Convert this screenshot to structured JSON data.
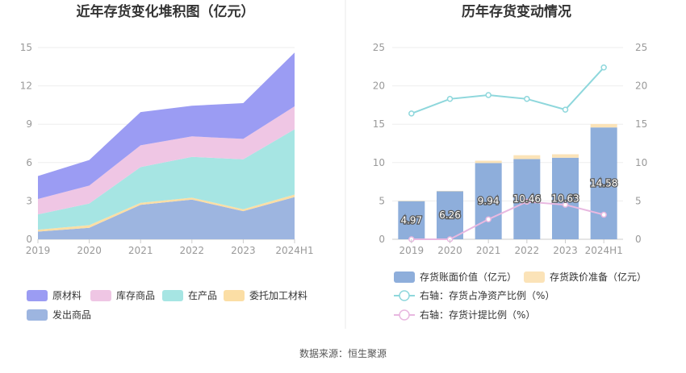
{
  "chart_data": [
    {
      "type": "area",
      "title": "近年存货变化堆积图（亿元）",
      "categories": [
        "2019",
        "2020",
        "2021",
        "2022",
        "2023",
        "2024H1"
      ],
      "ylim": [
        0,
        15
      ],
      "yticks": [
        0,
        3,
        6,
        9,
        12,
        15
      ],
      "grid": true,
      "legend_position": "bottom",
      "series": [
        {
          "name": "发出商品",
          "color": "#9db5e0",
          "values": [
            0.6,
            0.9,
            2.7,
            3.1,
            2.2,
            3.3
          ]
        },
        {
          "name": "委托加工材料",
          "color": "#fbdea5",
          "values": [
            0.15,
            0.2,
            0.15,
            0.15,
            0.15,
            0.2
          ]
        },
        {
          "name": "在产品",
          "color": "#a6e5e3",
          "values": [
            1.2,
            1.7,
            2.8,
            3.2,
            3.9,
            5.1
          ]
        },
        {
          "name": "库存商品",
          "color": "#efc6e4",
          "values": [
            1.2,
            1.4,
            1.7,
            1.6,
            1.6,
            1.8
          ]
        },
        {
          "name": "原材料",
          "color": "#9b9cf3",
          "values": [
            1.8,
            2.0,
            2.6,
            2.4,
            2.8,
            4.2
          ]
        }
      ]
    },
    {
      "type": "bar",
      "title": "历年存货变动情况",
      "categories": [
        "2019",
        "2020",
        "2021",
        "2022",
        "2023",
        "2024H1"
      ],
      "ylim": [
        0,
        25
      ],
      "yticks": [
        0,
        5,
        10,
        15,
        20,
        25
      ],
      "y2lim": [
        0,
        25
      ],
      "y2ticks": [
        0,
        5,
        10,
        15,
        20,
        25
      ],
      "grid": true,
      "legend_position": "bottom",
      "bar_series": [
        {
          "name": "存货账面价值（亿元）",
          "color": "#8eaedb",
          "values": [
            4.97,
            6.26,
            9.94,
            10.46,
            10.63,
            14.58
          ],
          "labels": [
            "4.97",
            "6.26",
            "9.94",
            "10.46",
            "10.63",
            "14.58"
          ]
        },
        {
          "name": "存货跌价准备（亿元）",
          "color": "#fbe3b8",
          "values": [
            0.05,
            0.05,
            0.3,
            0.5,
            0.45,
            0.45
          ]
        }
      ],
      "line_series": [
        {
          "name": "右轴：存货占净资产比例（%）",
          "color": "#8ed7dc",
          "values": [
            16.4,
            18.3,
            18.8,
            18.3,
            16.9,
            22.4
          ]
        },
        {
          "name": "右轴：存货计提比例（%）",
          "color": "#e8b8e0",
          "values": [
            0.0,
            0.0,
            2.6,
            4.9,
            4.5,
            3.2
          ]
        }
      ]
    }
  ],
  "footer": {
    "source": "数据来源：恒生聚源"
  }
}
